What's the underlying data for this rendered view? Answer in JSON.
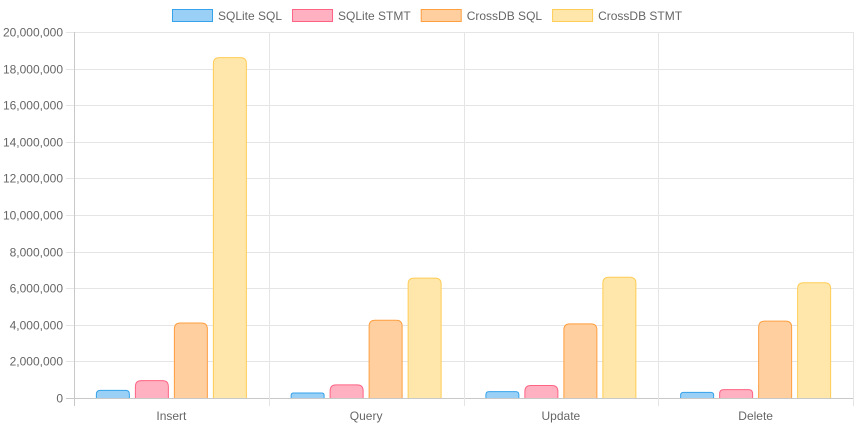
{
  "chart_data": {
    "type": "bar",
    "title": "",
    "xlabel": "",
    "ylabel": "",
    "ylim": [
      0,
      20000000
    ],
    "y_tick_step": 2000000,
    "grid": true,
    "legend_position": "top-center",
    "y_tick_labels": [
      "0",
      "2,000,000",
      "4,000,000",
      "6,000,000",
      "8,000,000",
      "10,000,000",
      "12,000,000",
      "14,000,000",
      "16,000,000",
      "18,000,000",
      "20,000,000"
    ],
    "categories": [
      "Insert",
      "Query",
      "Update",
      "Delete"
    ],
    "series": [
      {
        "name": "SQLite SQL",
        "values": [
          420000,
          270000,
          350000,
          310000
        ],
        "fill": "#9ad0f5",
        "stroke": "#36a2eb"
      },
      {
        "name": "SQLite STMT",
        "values": [
          950000,
          720000,
          680000,
          460000
        ],
        "fill": "#ffb1c1",
        "stroke": "#ff6384"
      },
      {
        "name": "CrossDB SQL",
        "values": [
          4100000,
          4250000,
          4050000,
          4200000
        ],
        "fill": "#ffcf9f",
        "stroke": "#ff9f40"
      },
      {
        "name": "CrossDB STMT",
        "values": [
          18600000,
          6550000,
          6600000,
          6300000
        ],
        "fill": "#ffe6aa",
        "stroke": "#ffcd56"
      }
    ]
  }
}
